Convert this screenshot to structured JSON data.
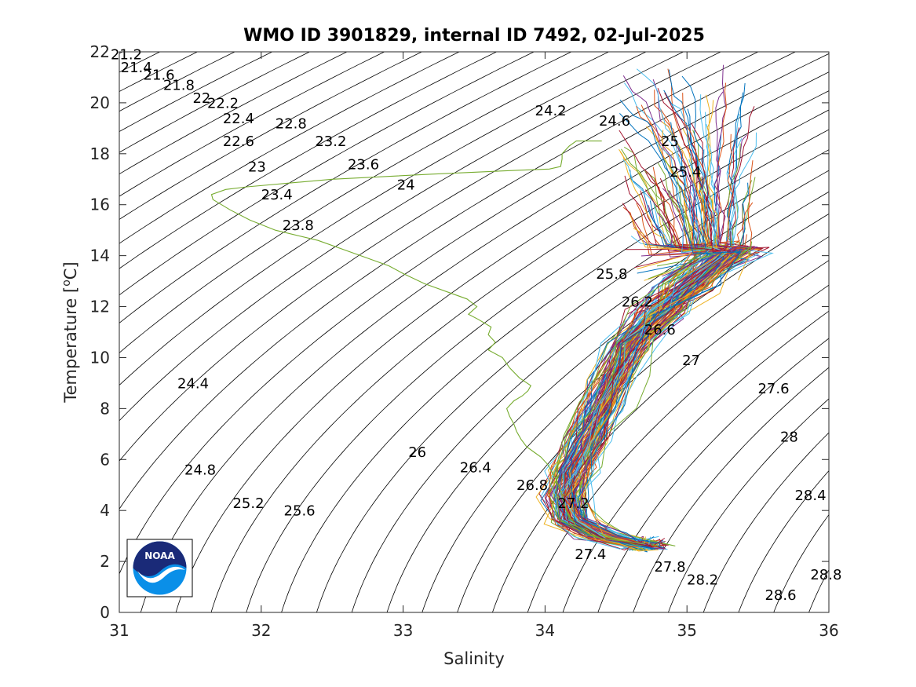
{
  "chart_data": {
    "type": "line",
    "title": "WMO ID 3901829, internal ID 7492, 02-Jul-2025",
    "xlabel": "Salinity",
    "ylabel_main": "Temperature [",
    "ylabel_sup": "o",
    "ylabel_tail": "C]",
    "xlim": [
      31,
      36
    ],
    "ylim": [
      0,
      22
    ],
    "xticks": [
      31,
      32,
      33,
      34,
      35,
      36
    ],
    "yticks": [
      0,
      2,
      4,
      6,
      8,
      10,
      12,
      14,
      16,
      18,
      20,
      22
    ],
    "grid": false,
    "density_contours": {
      "sigma_values": [
        21.2,
        21.4,
        21.6,
        21.8,
        22,
        22.2,
        22.4,
        22.6,
        22.8,
        23,
        23.2,
        23.4,
        23.6,
        23.8,
        24,
        24.2,
        24.4,
        24.6,
        24.8,
        25,
        25.2,
        25.4,
        25.6,
        25.8,
        26,
        26.2,
        26.4,
        26.6,
        26.8,
        27,
        27.2,
        27.4,
        27.6,
        27.8,
        28,
        28.2,
        28.4,
        28.6,
        28.8
      ],
      "labels": [
        {
          "text": "21.2",
          "s": 31.05,
          "t": 21.7
        },
        {
          "text": "21.4",
          "s": 31.12,
          "t": 21.2
        },
        {
          "text": "21.6",
          "s": 31.28,
          "t": 20.9
        },
        {
          "text": "21.8",
          "s": 31.42,
          "t": 20.5
        },
        {
          "text": "22",
          "s": 31.58,
          "t": 20.0
        },
        {
          "text": "22.2",
          "s": 31.73,
          "t": 19.8
        },
        {
          "text": "22.4",
          "s": 31.84,
          "t": 19.2
        },
        {
          "text": "22.6",
          "s": 31.84,
          "t": 18.3
        },
        {
          "text": "22.8",
          "s": 32.21,
          "t": 19.0
        },
        {
          "text": "23",
          "s": 31.97,
          "t": 17.3
        },
        {
          "text": "23.2",
          "s": 32.49,
          "t": 18.3
        },
        {
          "text": "23.4",
          "s": 32.11,
          "t": 16.2
        },
        {
          "text": "23.6",
          "s": 32.72,
          "t": 17.4
        },
        {
          "text": "23.8",
          "s": 32.26,
          "t": 15.0
        },
        {
          "text": "24",
          "s": 33.02,
          "t": 16.6
        },
        {
          "text": "24.2",
          "s": 34.04,
          "t": 19.5
        },
        {
          "text": "24.4",
          "s": 31.52,
          "t": 8.8
        },
        {
          "text": "24.6",
          "s": 34.49,
          "t": 19.1
        },
        {
          "text": "24.8",
          "s": 31.57,
          "t": 5.4
        },
        {
          "text": "25",
          "s": 34.88,
          "t": 18.3
        },
        {
          "text": "25.2",
          "s": 31.91,
          "t": 4.1
        },
        {
          "text": "25.4",
          "s": 34.99,
          "t": 17.1
        },
        {
          "text": "25.6",
          "s": 32.27,
          "t": 3.8
        },
        {
          "text": "25.8",
          "s": 34.47,
          "t": 13.1
        },
        {
          "text": "26",
          "s": 33.1,
          "t": 6.1
        },
        {
          "text": "26.2",
          "s": 34.65,
          "t": 12.0
        },
        {
          "text": "26.4",
          "s": 33.51,
          "t": 5.5
        },
        {
          "text": "26.6",
          "s": 34.81,
          "t": 10.9
        },
        {
          "text": "26.8",
          "s": 33.91,
          "t": 4.8
        },
        {
          "text": "27",
          "s": 35.03,
          "t": 9.7
        },
        {
          "text": "27.2",
          "s": 34.2,
          "t": 4.1
        },
        {
          "text": "27.4",
          "s": 34.32,
          "t": 2.1
        },
        {
          "text": "27.6",
          "s": 35.61,
          "t": 8.6
        },
        {
          "text": "27.8",
          "s": 34.88,
          "t": 1.6
        },
        {
          "text": "28",
          "s": 35.72,
          "t": 6.7
        },
        {
          "text": "28.2",
          "s": 35.11,
          "t": 1.1
        },
        {
          "text": "28.4",
          "s": 35.87,
          "t": 4.4
        },
        {
          "text": "28.6",
          "s": 35.66,
          "t": 0.5
        },
        {
          "text": "28.8",
          "s": 35.98,
          "t": 1.3
        }
      ]
    },
    "profile_colors": [
      "#0072bd",
      "#d95319",
      "#edb120",
      "#7e2f8e",
      "#77ac30",
      "#4dbeee",
      "#a2142f"
    ],
    "highlight_profile": {
      "color": "#77ac30",
      "points": [
        [
          34.4,
          18.5
        ],
        [
          34.22,
          18.5
        ],
        [
          34.17,
          18.3
        ],
        [
          34.12,
          18.0
        ],
        [
          34.12,
          17.8
        ],
        [
          34.11,
          17.5
        ],
        [
          34.03,
          17.4
        ],
        [
          33.8,
          17.35
        ],
        [
          33.2,
          17.2
        ],
        [
          32.5,
          17.0
        ],
        [
          31.9,
          16.7
        ],
        [
          31.75,
          16.6
        ],
        [
          31.65,
          16.4
        ],
        [
          31.66,
          16.2
        ],
        [
          31.72,
          16.0
        ],
        [
          31.78,
          15.8
        ],
        [
          31.92,
          15.4
        ],
        [
          32.1,
          15.0
        ],
        [
          32.4,
          14.6
        ],
        [
          32.7,
          14.0
        ],
        [
          32.9,
          13.6
        ],
        [
          33.0,
          13.3
        ],
        [
          33.15,
          12.9
        ],
        [
          33.35,
          12.5
        ],
        [
          33.45,
          12.3
        ],
        [
          33.52,
          12.0
        ],
        [
          33.46,
          11.7
        ],
        [
          33.53,
          11.5
        ],
        [
          33.62,
          11.2
        ],
        [
          33.6,
          10.9
        ],
        [
          33.65,
          10.6
        ],
        [
          33.6,
          10.3
        ],
        [
          33.7,
          10.0
        ],
        [
          33.75,
          9.6
        ],
        [
          33.82,
          9.2
        ],
        [
          33.9,
          8.9
        ],
        [
          33.88,
          8.7
        ],
        [
          33.84,
          8.5
        ],
        [
          33.78,
          8.3
        ],
        [
          33.73,
          8.0
        ],
        [
          33.75,
          7.7
        ],
        [
          33.78,
          7.4
        ],
        [
          33.8,
          7.1
        ],
        [
          33.83,
          6.8
        ],
        [
          33.87,
          6.5
        ],
        [
          33.92,
          6.3
        ],
        [
          33.97,
          6.1
        ],
        [
          34.02,
          5.8
        ],
        [
          34.05,
          5.5
        ],
        [
          34.08,
          5.2
        ],
        [
          34.1,
          4.9
        ],
        [
          34.12,
          4.6
        ],
        [
          34.13,
          4.3
        ],
        [
          34.15,
          4.0
        ],
        [
          34.18,
          3.7
        ],
        [
          34.22,
          3.4
        ],
        [
          34.3,
          3.1
        ],
        [
          34.4,
          2.9
        ],
        [
          34.55,
          2.8
        ],
        [
          34.7,
          2.7
        ]
      ]
    },
    "profile_envelope": {
      "surface": {
        "s": [
          34.5,
          35.5
        ],
        "t": [
          13.0,
          21.5
        ]
      },
      "upper_trend": [
        [
          35.3,
          14.2
        ],
        [
          35.0,
          12.8
        ],
        [
          34.8,
          11.8
        ],
        [
          34.6,
          10.5
        ],
        [
          34.5,
          9.3
        ],
        [
          34.4,
          8.0
        ],
        [
          34.3,
          6.8
        ],
        [
          34.2,
          5.6
        ],
        [
          34.15,
          4.6
        ],
        [
          34.2,
          3.6
        ],
        [
          34.4,
          3.0
        ],
        [
          34.7,
          2.6
        ]
      ]
    }
  }
}
